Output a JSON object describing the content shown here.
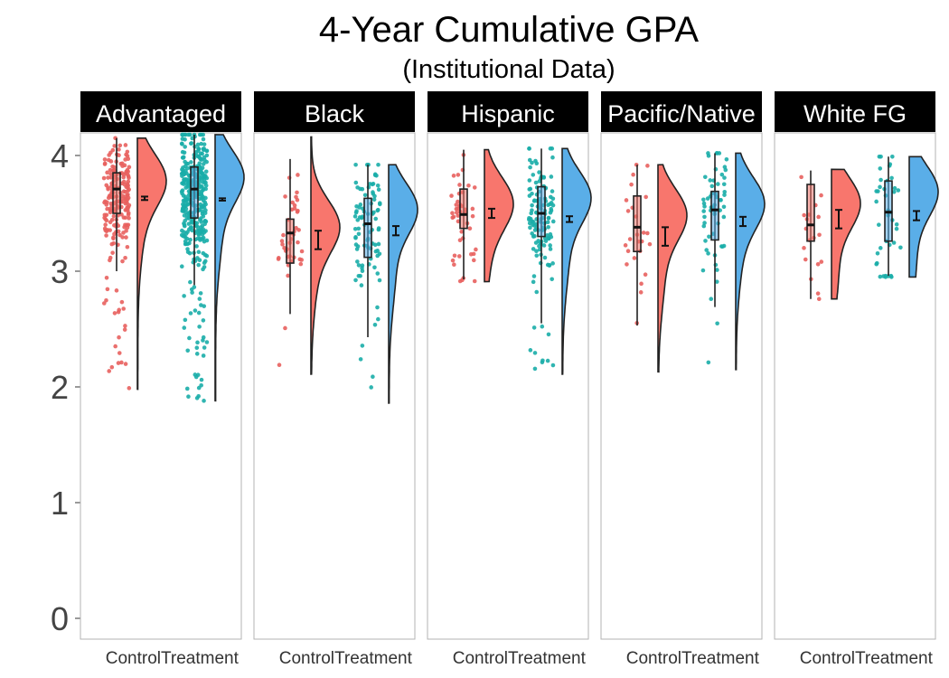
{
  "chart_data": {
    "type": "raincloud",
    "title": "4-Year Cumulative GPA",
    "subtitle": "(Institutional Data)",
    "xlabel": "",
    "ylabel": "",
    "ylim": [
      0,
      4.2
    ],
    "y_ticks": [
      0,
      1,
      2,
      3,
      4
    ],
    "grid": false,
    "legend": "none",
    "groups": [
      "Control",
      "Treatment"
    ],
    "colors": {
      "Control": {
        "point": "#e8615e",
        "fill": "#f8766d"
      },
      "Treatment": {
        "point": "#1aada9",
        "fill": "#5aaee8"
      }
    },
    "panels": [
      {
        "name": "Advantaged",
        "Control": {
          "q1": 3.5,
          "median": 3.71,
          "q3": 3.85,
          "whisker_low": 3.0,
          "whisker_high": 4.15,
          "mean": 3.63,
          "se": 0.015,
          "density_range": [
            1.98,
            4.15
          ],
          "mode": 3.8,
          "n_points": 200,
          "seed": 11
        },
        "Treatment": {
          "q1": 3.46,
          "median": 3.71,
          "q3": 3.9,
          "whisker_low": 2.88,
          "whisker_high": 4.18,
          "mean": 3.62,
          "se": 0.01,
          "density_range": [
            1.88,
            4.18
          ],
          "mode": 3.83,
          "n_points": 380,
          "seed": 23
        }
      },
      {
        "name": "Black",
        "Control": {
          "q1": 3.07,
          "median": 3.33,
          "q3": 3.45,
          "whisker_low": 2.63,
          "whisker_high": 3.97,
          "mean": 3.27,
          "se": 0.08,
          "density_range": [
            2.11,
            4.16
          ],
          "mode": 3.4,
          "n_points": 40,
          "seed": 31
        },
        "Treatment": {
          "q1": 3.12,
          "median": 3.41,
          "q3": 3.63,
          "whisker_low": 2.43,
          "whisker_high": 3.92,
          "mean": 3.35,
          "se": 0.04,
          "density_range": [
            1.86,
            3.92
          ],
          "mode": 3.55,
          "n_points": 90,
          "seed": 37
        }
      },
      {
        "name": "Hispanic",
        "Control": {
          "q1": 3.37,
          "median": 3.49,
          "q3": 3.71,
          "whisker_low": 2.93,
          "whisker_high": 4.05,
          "mean": 3.5,
          "se": 0.04,
          "density_range": [
            2.91,
            4.05
          ],
          "mode": 3.6,
          "n_points": 45,
          "seed": 41
        },
        "Treatment": {
          "q1": 3.3,
          "median": 3.5,
          "q3": 3.73,
          "whisker_low": 2.55,
          "whisker_high": 4.06,
          "mean": 3.45,
          "se": 0.025,
          "density_range": [
            2.11,
            4.06
          ],
          "mode": 3.65,
          "n_points": 130,
          "seed": 43
        }
      },
      {
        "name": "Pacific/Native",
        "Control": {
          "q1": 3.17,
          "median": 3.38,
          "q3": 3.65,
          "whisker_low": 2.53,
          "whisker_high": 3.92,
          "mean": 3.3,
          "se": 0.08,
          "density_range": [
            2.13,
            3.92
          ],
          "mode": 3.5,
          "n_points": 25,
          "seed": 51
        },
        "Treatment": {
          "q1": 3.27,
          "median": 3.53,
          "q3": 3.69,
          "whisker_low": 2.69,
          "whisker_high": 4.02,
          "mean": 3.43,
          "se": 0.04,
          "density_range": [
            2.15,
            4.02
          ],
          "mode": 3.6,
          "n_points": 60,
          "seed": 53
        }
      },
      {
        "name": "White FG",
        "Control": {
          "q1": 3.26,
          "median": 3.4,
          "q3": 3.75,
          "whisker_low": 2.76,
          "whisker_high": 3.87,
          "mean": 3.45,
          "se": 0.08,
          "density_range": [
            2.76,
            3.88
          ],
          "mode": 3.6,
          "n_points": 18,
          "seed": 61
        },
        "Treatment": {
          "q1": 3.26,
          "median": 3.51,
          "q3": 3.78,
          "whisker_low": 2.96,
          "whisker_high": 3.99,
          "mean": 3.48,
          "se": 0.04,
          "density_range": [
            2.95,
            3.99
          ],
          "mode": 3.7,
          "n_points": 40,
          "seed": 67
        }
      }
    ]
  }
}
